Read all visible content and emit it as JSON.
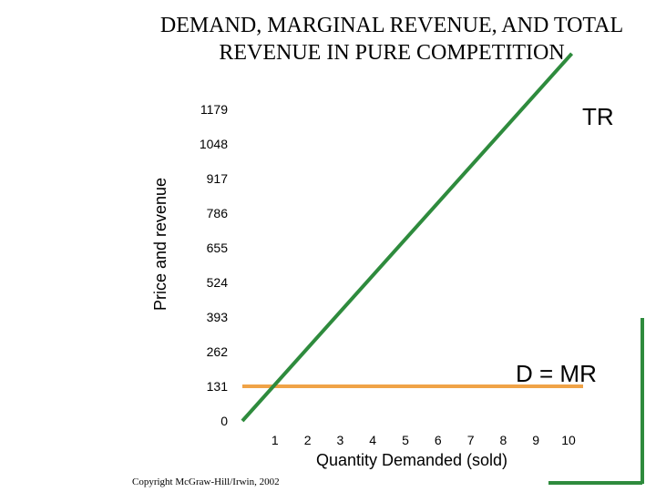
{
  "title_line1": "DEMAND, MARGINAL REVENUE, AND TOTAL",
  "title_line2": "REVENUE IN PURE COMPETITION",
  "copyright": "Copyright McGraw-Hill/Irwin, 2002",
  "colors": {
    "tr": "#2e8b3d",
    "mr": "#f0a347",
    "axis": "#2e8b3d",
    "text": "#000000"
  },
  "chart_data": {
    "type": "line",
    "xlabel": "Quantity Demanded (sold)",
    "ylabel": "Price and revenue",
    "x_ticks": [
      "1",
      "2",
      "3",
      "4",
      "5",
      "6",
      "7",
      "8",
      "9",
      "10"
    ],
    "y_ticks": [
      "0",
      "131",
      "262",
      "393",
      "524",
      "655",
      "786",
      "917",
      "1048",
      "1179"
    ],
    "xlim": [
      0,
      10.5
    ],
    "ylim": [
      0,
      1179
    ],
    "grid": false,
    "series": [
      {
        "name": "TR",
        "x": [
          0,
          10.1
        ],
        "y": [
          0,
          1390
        ]
      },
      {
        "name": "D = MR",
        "x": [
          0,
          10.5
        ],
        "y": [
          131,
          131
        ]
      }
    ]
  }
}
